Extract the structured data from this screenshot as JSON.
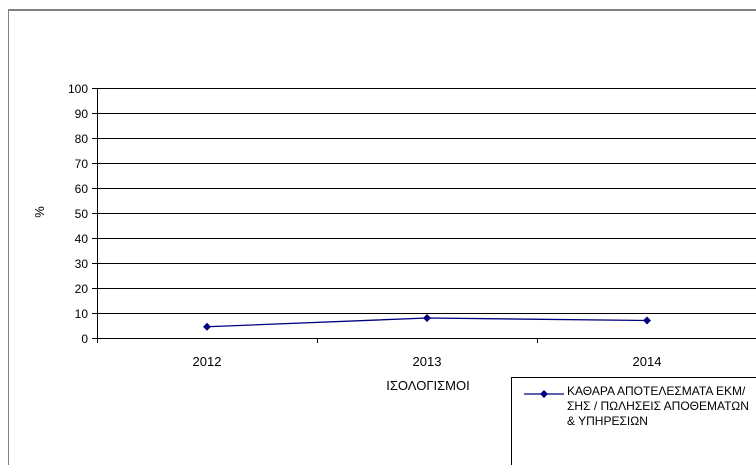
{
  "chart_data": {
    "type": "line",
    "categories": [
      "2012",
      "2013",
      "2014"
    ],
    "series": [
      {
        "name": "ΚΑΘΑΡΑ ΑΠΟΤΕΛΕΣΜΑΤΑ ΕΚΜ/ΣΗΣ / ΠΩΛΗΣΕΙΣ ΑΠΟΘΕΜΑΤΩΝ & ΥΠΗΡΕΣΙΩΝ",
        "values": [
          4.5,
          8,
          7
        ],
        "color": "#000080",
        "marker": "diamond"
      }
    ],
    "xlabel": "ΙΣΟΛΟΓΙΣΜΟΙ",
    "ylabel": "%",
    "ylim": [
      0,
      100
    ],
    "yticks": [
      "0",
      "10",
      "20",
      "30",
      "40",
      "50",
      "60",
      "70",
      "80",
      "90",
      "100"
    ],
    "grid": true,
    "legend_position": "bottom-right"
  }
}
